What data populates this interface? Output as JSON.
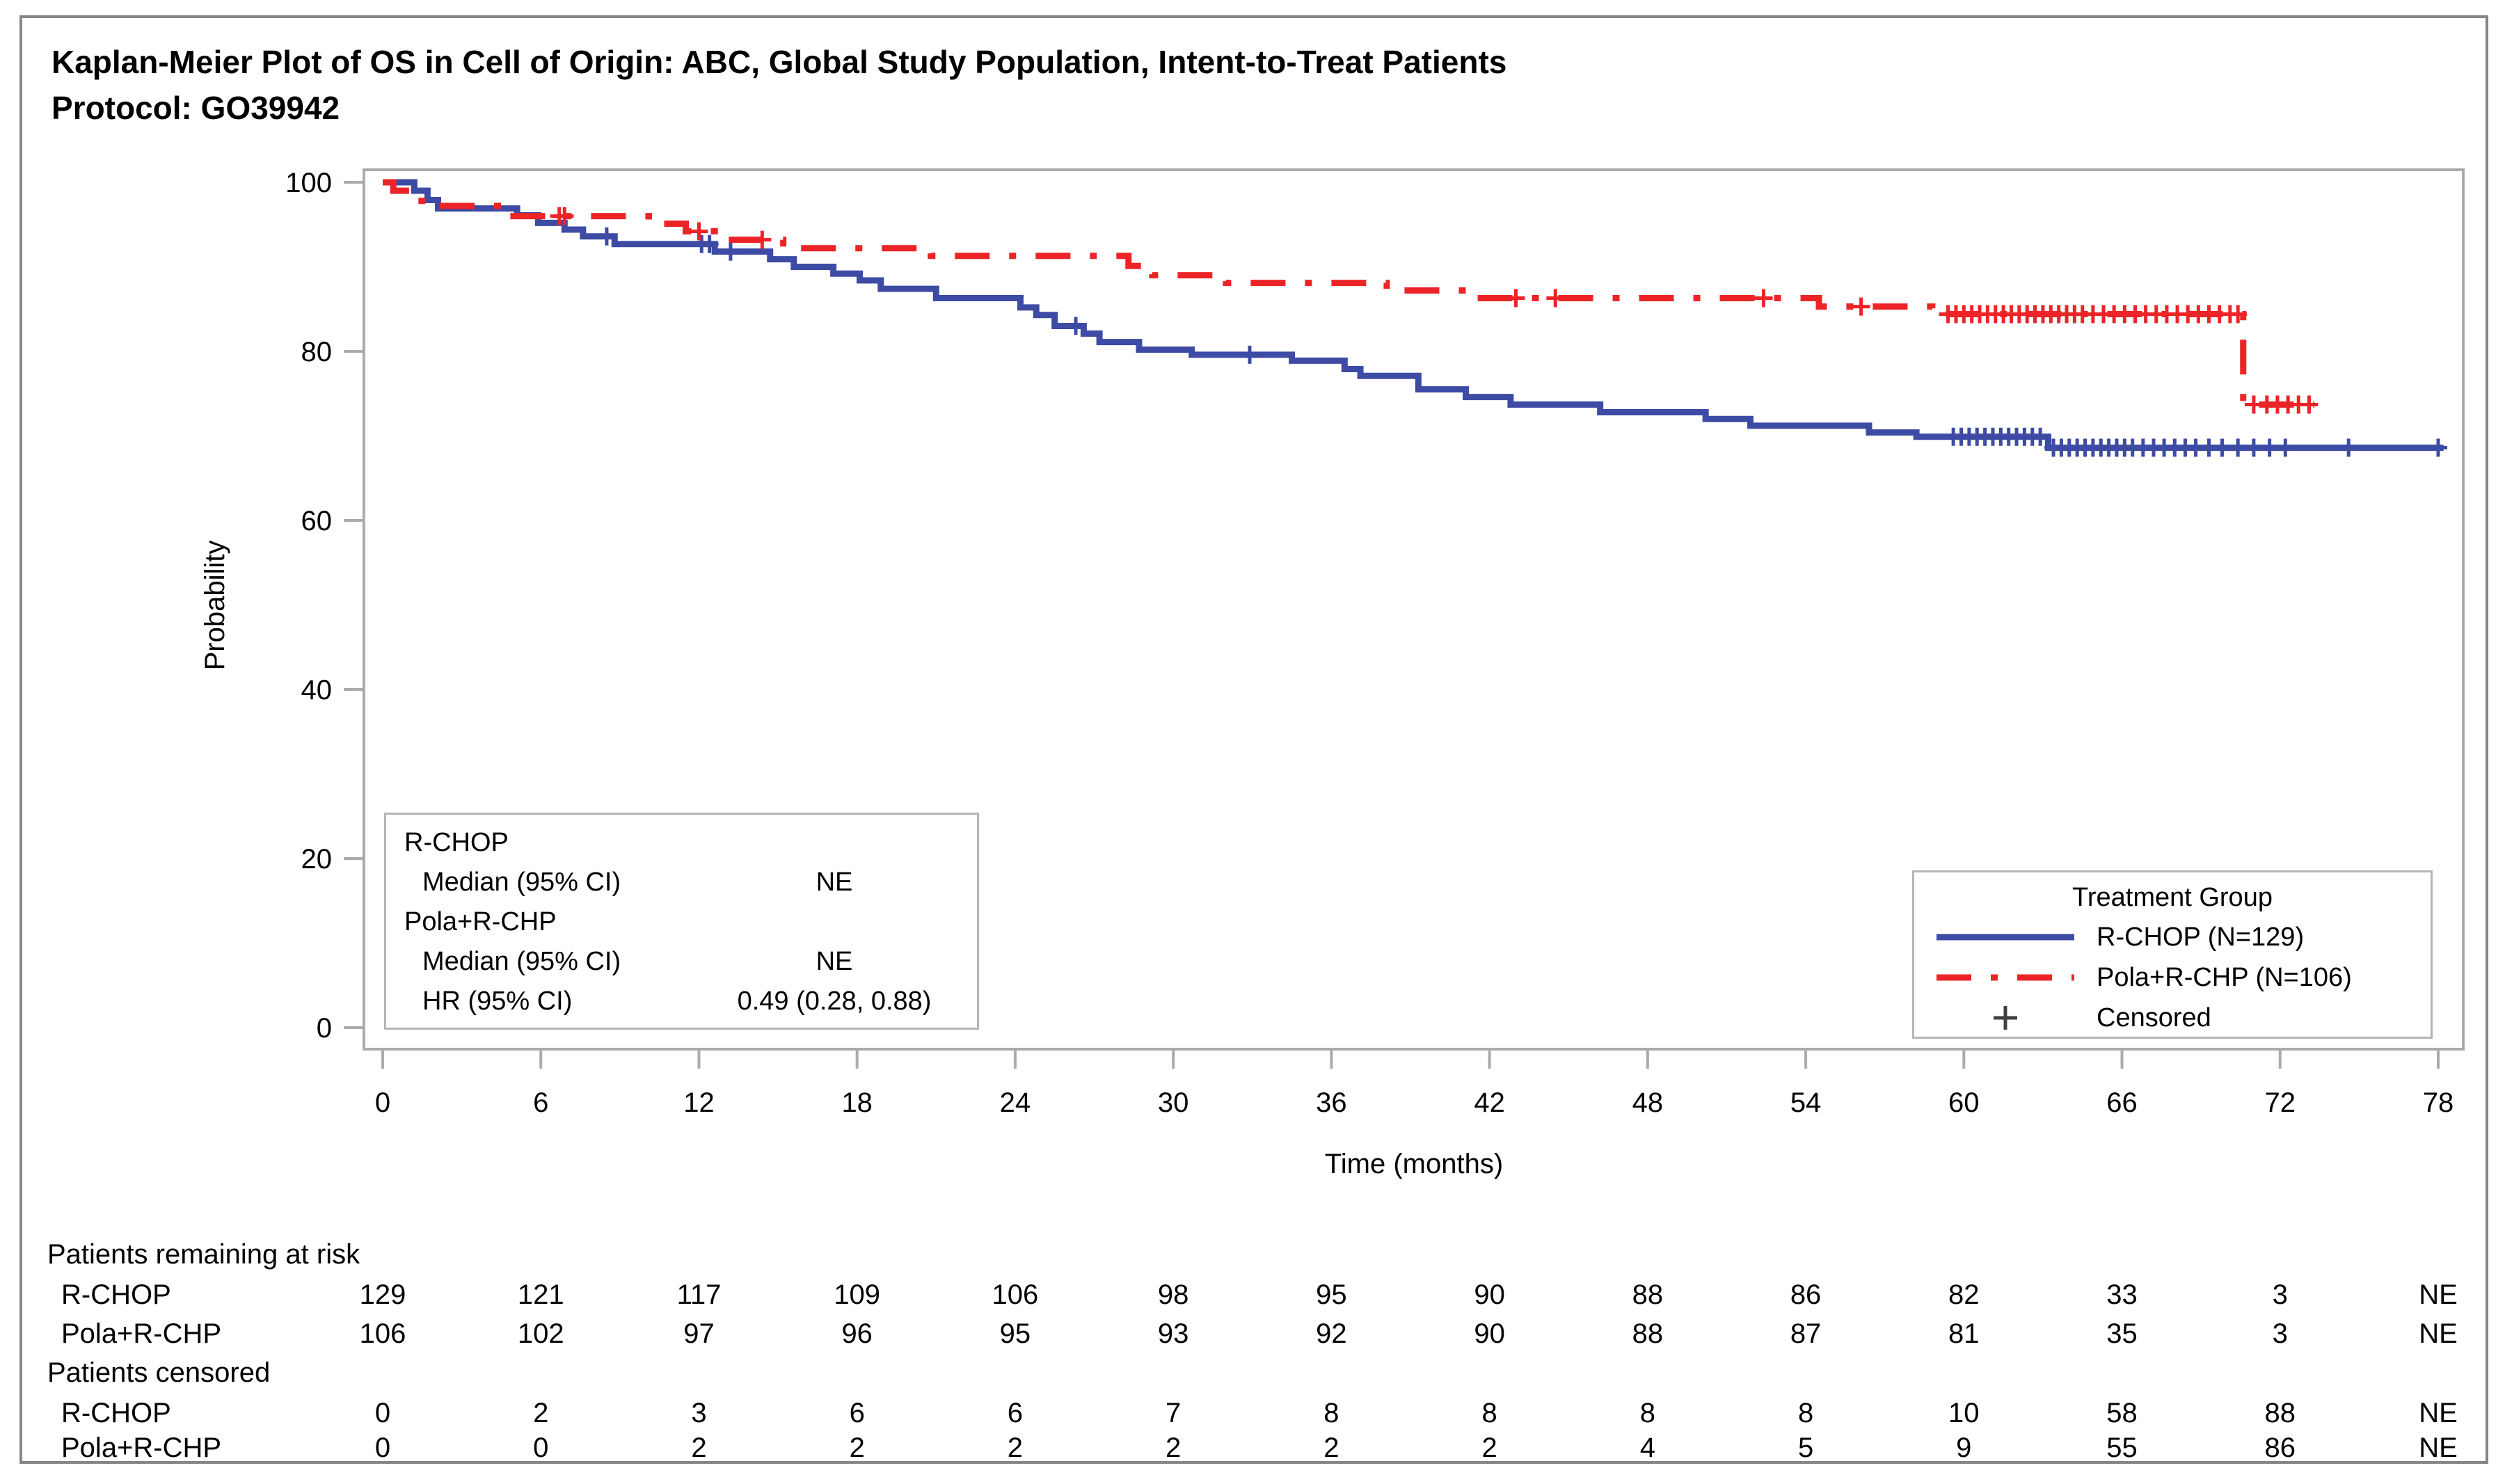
{
  "figure": {
    "title_line1": "Kaplan-Meier Plot of OS in Cell of Origin: ABC, Global Study Population, Intent-to-Treat Patients",
    "title_line2": "Protocol: GO39942"
  },
  "axes": {
    "y_label": "Probability",
    "x_label": "Time (months)",
    "y_ticks": [
      0,
      20,
      40,
      60,
      80,
      100
    ],
    "x_ticks": [
      0,
      6,
      12,
      18,
      24,
      30,
      36,
      42,
      48,
      54,
      60,
      66,
      72,
      78
    ]
  },
  "stats_box": {
    "rows": [
      {
        "label": "R-CHOP",
        "value": ""
      },
      {
        "label": "Median (95% CI)",
        "value": "NE"
      },
      {
        "label": "Pola+R-CHP",
        "value": ""
      },
      {
        "label": "Median (95% CI)",
        "value": "NE"
      },
      {
        "label": "HR (95% CI)",
        "value": "0.49 (0.28, 0.88)"
      }
    ]
  },
  "legend": {
    "title": "Treatment Group",
    "items": [
      {
        "label": "R-CHOP (N=129)",
        "marker": "solid-line",
        "color": "#3D4BA5"
      },
      {
        "label": "Pola+R-CHP (N=106)",
        "marker": "dash-dot-line",
        "color": "#EC2427"
      },
      {
        "label": "Censored",
        "marker": "plus",
        "color": "#404040"
      }
    ]
  },
  "chart_data": {
    "type": "line",
    "subtype": "kaplan-meier-step",
    "title": "Kaplan-Meier Plot of OS in Cell of Origin: ABC, Global Study Population, Intent-to-Treat Patients",
    "xlabel": "Time (months)",
    "ylabel": "Probability",
    "xlim": [
      0,
      78
    ],
    "ylim": [
      0,
      100
    ],
    "grid": false,
    "legend_position": "lower-right",
    "series": [
      {
        "name": "R-CHOP (N=129)",
        "color": "#3D4BA5",
        "line_style": "solid",
        "steps": [
          [
            0,
            100
          ],
          [
            1.2,
            99.0
          ],
          [
            1.7,
            97.9
          ],
          [
            2.1,
            96.9
          ],
          [
            5.1,
            96.1
          ],
          [
            5.9,
            95.2
          ],
          [
            6.9,
            94.4
          ],
          [
            7.6,
            93.6
          ],
          [
            8.8,
            92.7
          ],
          [
            12.6,
            91.8
          ],
          [
            14.7,
            90.9
          ],
          [
            15.6,
            90.0
          ],
          [
            17.1,
            89.2
          ],
          [
            18.1,
            88.4
          ],
          [
            18.9,
            87.4
          ],
          [
            21.0,
            86.3
          ],
          [
            24.2,
            85.2
          ],
          [
            24.8,
            84.3
          ],
          [
            25.5,
            83.0
          ],
          [
            26.6,
            82.1
          ],
          [
            27.2,
            81.1
          ],
          [
            28.7,
            80.2
          ],
          [
            30.7,
            79.6
          ],
          [
            34.5,
            78.9
          ],
          [
            36.5,
            77.9
          ],
          [
            37.1,
            77.1
          ],
          [
            39.3,
            75.5
          ],
          [
            41.1,
            74.6
          ],
          [
            42.8,
            73.7
          ],
          [
            46.2,
            72.8
          ],
          [
            50.2,
            72.0
          ],
          [
            51.9,
            71.2
          ],
          [
            56.4,
            70.4
          ],
          [
            58.2,
            69.9
          ],
          [
            63.2,
            68.6
          ]
        ],
        "end_time": 78.2,
        "censor_times": [
          8.5,
          12.1,
          12.4,
          13.2,
          26.3,
          32.9,
          59.6,
          59.9,
          60.2,
          60.5,
          60.8,
          61.1,
          61.4,
          61.7,
          62.0,
          62.3,
          62.6,
          62.9,
          63.4,
          63.7,
          64.0,
          64.3,
          64.6,
          64.9,
          65.2,
          65.5,
          65.8,
          66.1,
          66.4,
          66.8,
          67.2,
          67.6,
          68.0,
          68.4,
          68.8,
          69.3,
          69.8,
          70.4,
          71.0,
          71.6,
          72.2,
          74.6,
          78.0
        ]
      },
      {
        "name": "Pola+R-CHP (N=106)",
        "color": "#EC2427",
        "line_style": "dash-dot",
        "steps": [
          [
            0,
            100
          ],
          [
            0.4,
            99.0
          ],
          [
            1.1,
            97.8
          ],
          [
            1.9,
            97.2
          ],
          [
            4.8,
            96.0
          ],
          [
            10.1,
            95.1
          ],
          [
            11.5,
            94.2
          ],
          [
            12.6,
            93.2
          ],
          [
            15.2,
            92.2
          ],
          [
            20.8,
            91.3
          ],
          [
            28.3,
            90.1
          ],
          [
            29.2,
            89.0
          ],
          [
            32.0,
            88.1
          ],
          [
            38.1,
            87.2
          ],
          [
            41.5,
            86.3
          ],
          [
            54.5,
            85.3
          ],
          [
            58.8,
            84.4
          ],
          [
            70.6,
            73.7
          ]
        ],
        "end_time": 73.3,
        "censor_times": [
          6.7,
          6.9,
          12.0,
          14.4,
          43.0,
          44.5,
          52.4,
          56.1,
          59.4,
          59.7,
          60.0,
          60.3,
          60.6,
          60.9,
          61.2,
          61.5,
          61.8,
          62.1,
          62.4,
          62.7,
          63.0,
          63.3,
          63.6,
          63.9,
          64.2,
          64.5,
          64.9,
          65.3,
          65.7,
          66.1,
          66.5,
          66.9,
          67.3,
          67.7,
          68.1,
          68.5,
          68.9,
          69.3,
          69.7,
          70.1,
          70.4,
          71.0,
          71.5,
          71.9,
          72.3,
          72.7,
          73.1
        ]
      }
    ],
    "annotations": {
      "hr_text": "HR (95% CI) 0.49 (0.28, 0.88)",
      "median_r_chop": "NE",
      "median_pola_r_chp": "NE"
    }
  },
  "risk_table": {
    "times": [
      0,
      6,
      12,
      18,
      24,
      30,
      36,
      42,
      48,
      54,
      60,
      66,
      72,
      78
    ],
    "sections": [
      {
        "header": "Patients remaining at risk",
        "rows": [
          {
            "label": "R-CHOP",
            "values": [
              "129",
              "121",
              "117",
              "109",
              "106",
              "98",
              "95",
              "90",
              "88",
              "86",
              "82",
              "33",
              "3",
              "NE"
            ]
          },
          {
            "label": "Pola+R-CHP",
            "values": [
              "106",
              "102",
              "97",
              "96",
              "95",
              "93",
              "92",
              "90",
              "88",
              "87",
              "81",
              "35",
              "3",
              "NE"
            ]
          }
        ]
      },
      {
        "header": "Patients censored",
        "rows": [
          {
            "label": "R-CHOP",
            "values": [
              "0",
              "2",
              "3",
              "6",
              "6",
              "7",
              "8",
              "8",
              "8",
              "8",
              "10",
              "58",
              "88",
              "NE"
            ]
          },
          {
            "label": "Pola+R-CHP",
            "values": [
              "0",
              "0",
              "2",
              "2",
              "2",
              "2",
              "2",
              "2",
              "4",
              "5",
              "9",
              "55",
              "86",
              "NE"
            ]
          }
        ]
      }
    ]
  }
}
